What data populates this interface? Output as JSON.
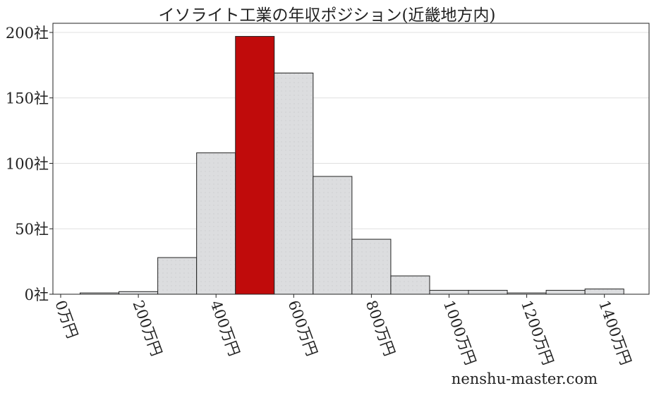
{
  "chart_data": {
    "type": "bar",
    "title": "イソライト工業の年収ポジション(近畿地方内)",
    "xlabel": "",
    "ylabel": "",
    "bin_width": 100,
    "bins": [
      {
        "from": 50,
        "to": 150,
        "value": 1
      },
      {
        "from": 150,
        "to": 250,
        "value": 2
      },
      {
        "from": 250,
        "to": 350,
        "value": 28
      },
      {
        "from": 350,
        "to": 450,
        "value": 108
      },
      {
        "from": 450,
        "to": 550,
        "value": 197,
        "highlight": true
      },
      {
        "from": 550,
        "to": 650,
        "value": 169
      },
      {
        "from": 650,
        "to": 750,
        "value": 90
      },
      {
        "from": 750,
        "to": 850,
        "value": 42
      },
      {
        "from": 850,
        "to": 950,
        "value": 14
      },
      {
        "from": 950,
        "to": 1050,
        "value": 3
      },
      {
        "from": 1050,
        "to": 1150,
        "value": 3
      },
      {
        "from": 1150,
        "to": 1250,
        "value": 1
      },
      {
        "from": 1250,
        "to": 1350,
        "value": 3
      },
      {
        "from": 1350,
        "to": 1450,
        "value": 4
      }
    ],
    "xticks": [
      {
        "value": 0,
        "label": "0万円"
      },
      {
        "value": 200,
        "label": "200万円"
      },
      {
        "value": 400,
        "label": "400万円"
      },
      {
        "value": 600,
        "label": "600万円"
      },
      {
        "value": 800,
        "label": "800万円"
      },
      {
        "value": 1000,
        "label": "1000万円"
      },
      {
        "value": 1200,
        "label": "1200万円"
      },
      {
        "value": 1400,
        "label": "1400万円"
      }
    ],
    "yticks": [
      {
        "value": 0,
        "label": "0社"
      },
      {
        "value": 50,
        "label": "50社"
      },
      {
        "value": 100,
        "label": "100社"
      },
      {
        "value": 150,
        "label": "150社"
      },
      {
        "value": 200,
        "label": "200社"
      }
    ],
    "xlim": [
      -20,
      1515
    ],
    "ylim": [
      0,
      207
    ],
    "grid": "horizontal",
    "colors": {
      "bar": "#dcdddf",
      "highlight": "#c00b0b",
      "edge": "#222222",
      "grid": "#e0e0e0"
    }
  },
  "watermark": "nenshu-master.com"
}
